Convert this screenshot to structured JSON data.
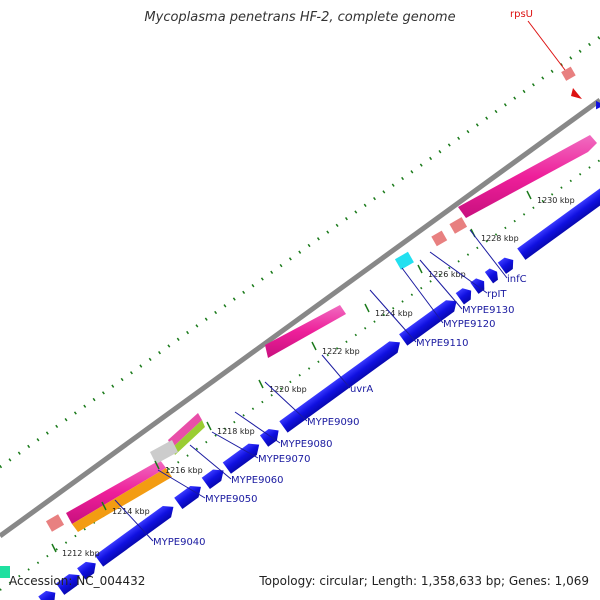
{
  "map": {
    "title": "Mycoplasma penetrans HF-2, complete genome",
    "accession": "Accession: NC_004432",
    "summary": "Topology: circular; Length: 1,358,633 bp; Genes: 1,069",
    "kbp_ticks": [
      "1212 kbp",
      "1214 kbp",
      "1216 kbp",
      "1218 kbp",
      "1220 kbp",
      "1222 kbp",
      "1224 kbp",
      "1226 kbp",
      "1228 kbp",
      "1230 kbp"
    ],
    "gene_labels": [
      "MYPE9040",
      "MYPE9050",
      "MYPE9060",
      "MYPE9070",
      "MYPE9080",
      "MYPE9090",
      "uvrA",
      "MYPE9110",
      "MYPE9120",
      "MYPE9130",
      "rpIT",
      "infC",
      "rpsU"
    ],
    "colors": {
      "cds": "#1010e0",
      "cds_pink": "#ee1f9a",
      "rrna_orange": "#f39c12",
      "trna_salmon": "#e88080",
      "misc_cyan": "#22e0f0",
      "backbone": "#888888",
      "tick_green": "#1a7a1a",
      "label_blue": "#1a1aa0",
      "label_red": "#dd1111"
    }
  }
}
